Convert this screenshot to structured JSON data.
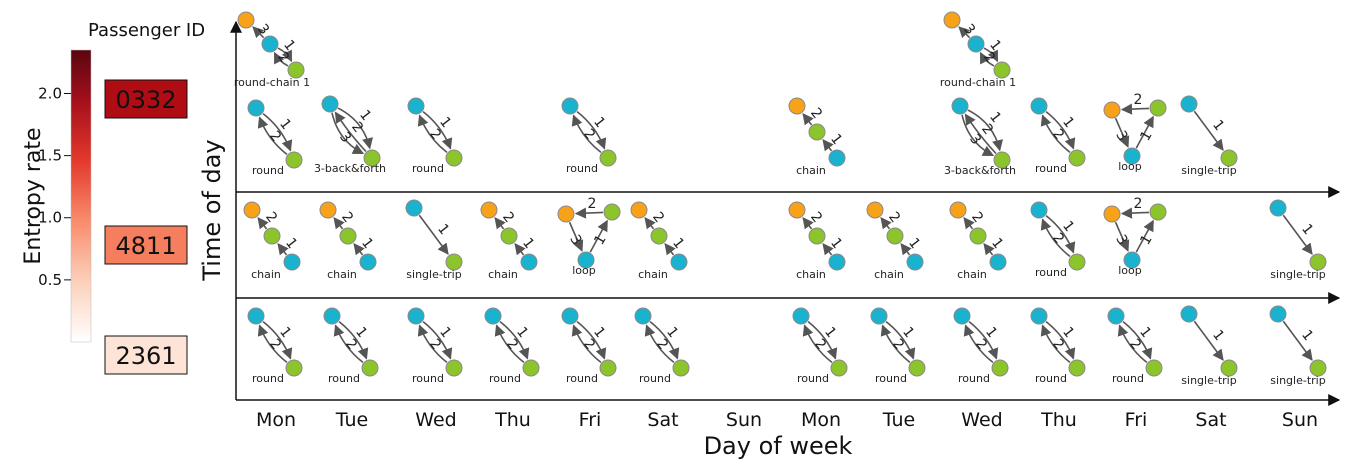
{
  "legend": {
    "title": "Passenger ID",
    "colorbar_label": "Entropy rate",
    "colorbar_ticks": [
      "2.0",
      "1.5",
      "1.0",
      "0.5"
    ],
    "colorbar_tick_values": [
      2.0,
      1.5,
      1.0,
      0.5
    ],
    "colorbar_range": [
      0,
      2.35
    ],
    "passengers": [
      {
        "id": "0332",
        "color": "#b00c14",
        "entropy": 2.0
      },
      {
        "id": "4811",
        "color": "#f47e5e",
        "entropy": 0.95
      },
      {
        "id": "2361",
        "color": "#fde4d6",
        "entropy": 0.1
      }
    ]
  },
  "axes": {
    "xlabel": "Day of week",
    "ylabel": "Time of day",
    "days": [
      "Mon",
      "Tue",
      "Wed",
      "Thu",
      "Fri",
      "Sat",
      "Sun",
      "Mon",
      "Tue",
      "Wed",
      "Thu",
      "Fri",
      "Sat",
      "Sun"
    ]
  },
  "colors": {
    "orange": "#f8a21a",
    "blue": "#19b3cf",
    "green": "#8cc42c",
    "edge": "#555555"
  },
  "motifs": {
    "round": "round",
    "chain": "chain",
    "single": "single-trip",
    "loop": "loop",
    "bf3": "3-back&forth",
    "rc1": "round-chain 1"
  },
  "rows": [
    {
      "passenger": "0332",
      "cells": [
        {
          "day": 0,
          "motifs": [
            "rc1",
            "round"
          ]
        },
        {
          "day": 1,
          "motifs": [
            "bf3"
          ]
        },
        {
          "day": 2,
          "motifs": [
            "round"
          ]
        },
        {
          "day": 4,
          "motifs": [
            "round"
          ]
        },
        {
          "day": 7,
          "motifs": [
            "chain"
          ]
        },
        {
          "day": 9,
          "motifs": [
            "rc1",
            "bf3"
          ]
        },
        {
          "day": 10,
          "motifs": [
            "round"
          ]
        },
        {
          "day": 11,
          "motifs": [
            "loop"
          ]
        },
        {
          "day": 12,
          "motifs": [
            "single"
          ]
        }
      ]
    },
    {
      "passenger": "4811",
      "cells": [
        {
          "day": 0,
          "motifs": [
            "chain"
          ]
        },
        {
          "day": 1,
          "motifs": [
            "chain"
          ]
        },
        {
          "day": 2,
          "motifs": [
            "single"
          ]
        },
        {
          "day": 3,
          "motifs": [
            "chain"
          ]
        },
        {
          "day": 4,
          "motifs": [
            "loop"
          ]
        },
        {
          "day": 5,
          "motifs": [
            "chain"
          ]
        },
        {
          "day": 7,
          "motifs": [
            "chain"
          ]
        },
        {
          "day": 8,
          "motifs": [
            "chain"
          ]
        },
        {
          "day": 9,
          "motifs": [
            "chain"
          ]
        },
        {
          "day": 10,
          "motifs": [
            "round"
          ]
        },
        {
          "day": 11,
          "motifs": [
            "loop"
          ]
        },
        {
          "day": 13,
          "motifs": [
            "single"
          ]
        }
      ]
    },
    {
      "passenger": "2361",
      "cells": [
        {
          "day": 0,
          "motifs": [
            "round"
          ]
        },
        {
          "day": 1,
          "motifs": [
            "round"
          ]
        },
        {
          "day": 2,
          "motifs": [
            "round"
          ]
        },
        {
          "day": 3,
          "motifs": [
            "round"
          ]
        },
        {
          "day": 4,
          "motifs": [
            "round"
          ]
        },
        {
          "day": 5,
          "motifs": [
            "round"
          ]
        },
        {
          "day": 7,
          "motifs": [
            "round"
          ]
        },
        {
          "day": 8,
          "motifs": [
            "round"
          ]
        },
        {
          "day": 9,
          "motifs": [
            "round"
          ]
        },
        {
          "day": 10,
          "motifs": [
            "round"
          ]
        },
        {
          "day": 11,
          "motifs": [
            "round"
          ]
        },
        {
          "day": 12,
          "motifs": [
            "single"
          ]
        },
        {
          "day": 13,
          "motifs": [
            "single"
          ]
        }
      ]
    }
  ]
}
